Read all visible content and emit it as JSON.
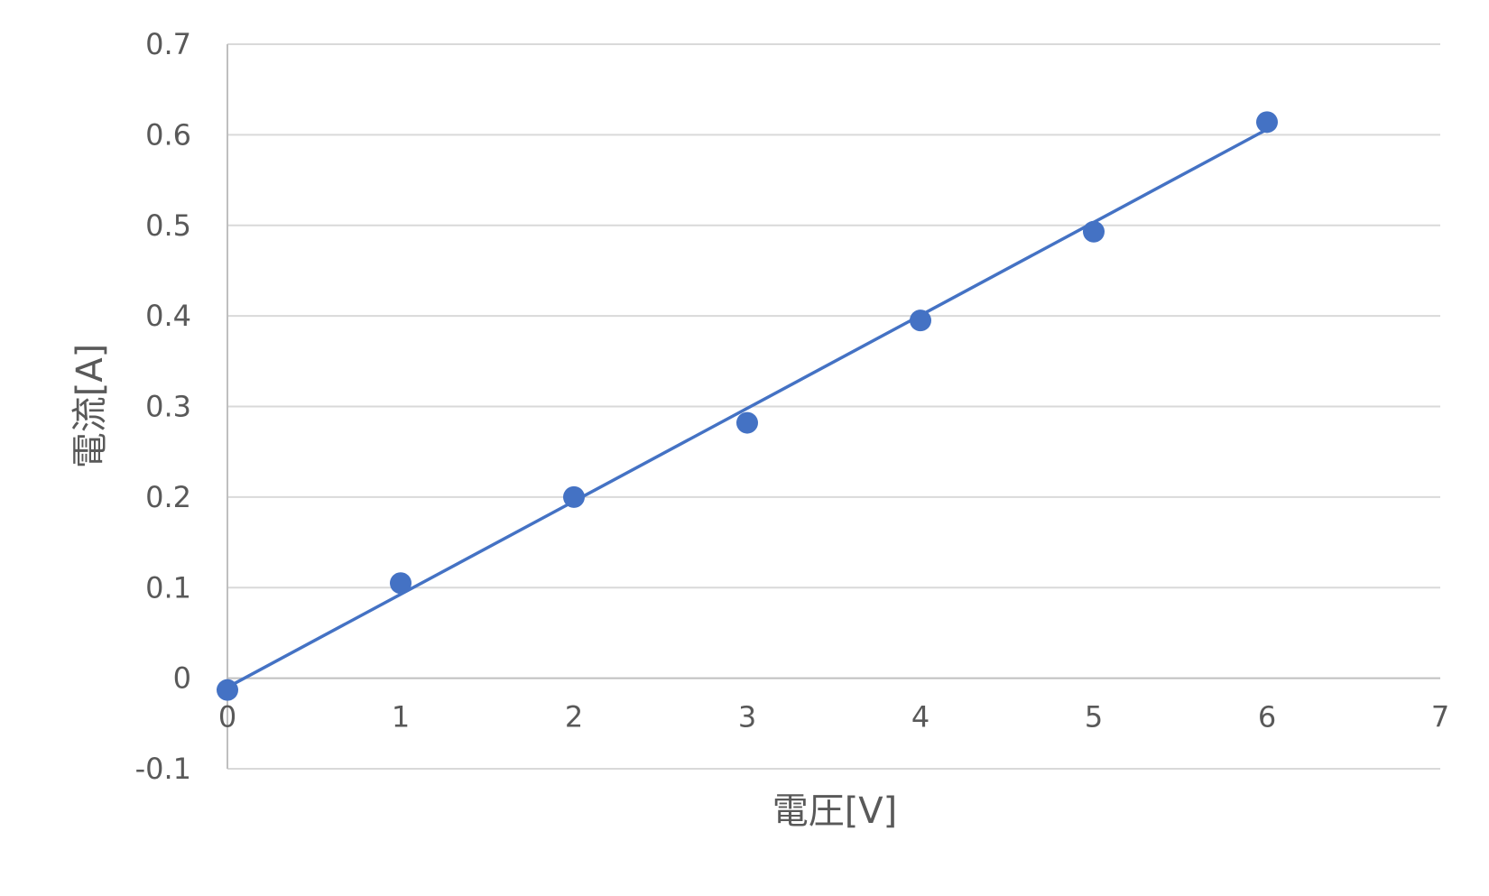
{
  "chart_data": {
    "type": "scatter",
    "title": "",
    "xlabel": "電圧[V]",
    "ylabel": "電流[A]",
    "xlim": [
      0,
      7
    ],
    "ylim": [
      -0.1,
      0.7
    ],
    "xticks": [
      "0",
      "1",
      "2",
      "3",
      "4",
      "5",
      "6",
      "7"
    ],
    "yticks": [
      "-0.1",
      "0",
      "0.1",
      "0.2",
      "0.3",
      "0.4",
      "0.5",
      "0.6",
      "0.7"
    ],
    "grid": true,
    "legend": "none",
    "series": [
      {
        "x": [
          0,
          1,
          2,
          3,
          4,
          5,
          6
        ],
        "y": [
          -0.013,
          0.105,
          0.2,
          0.282,
          0.395,
          0.493,
          0.614
        ],
        "marker_color": "#4472C4"
      }
    ],
    "trendline": {
      "type": "linear",
      "x": [
        0,
        6
      ],
      "y": [
        -0.01,
        0.606
      ],
      "color": "#4472C4"
    },
    "colors": {
      "grid": "#d9d9d9",
      "axis": "#bfbfbf",
      "text": "#595959"
    }
  }
}
